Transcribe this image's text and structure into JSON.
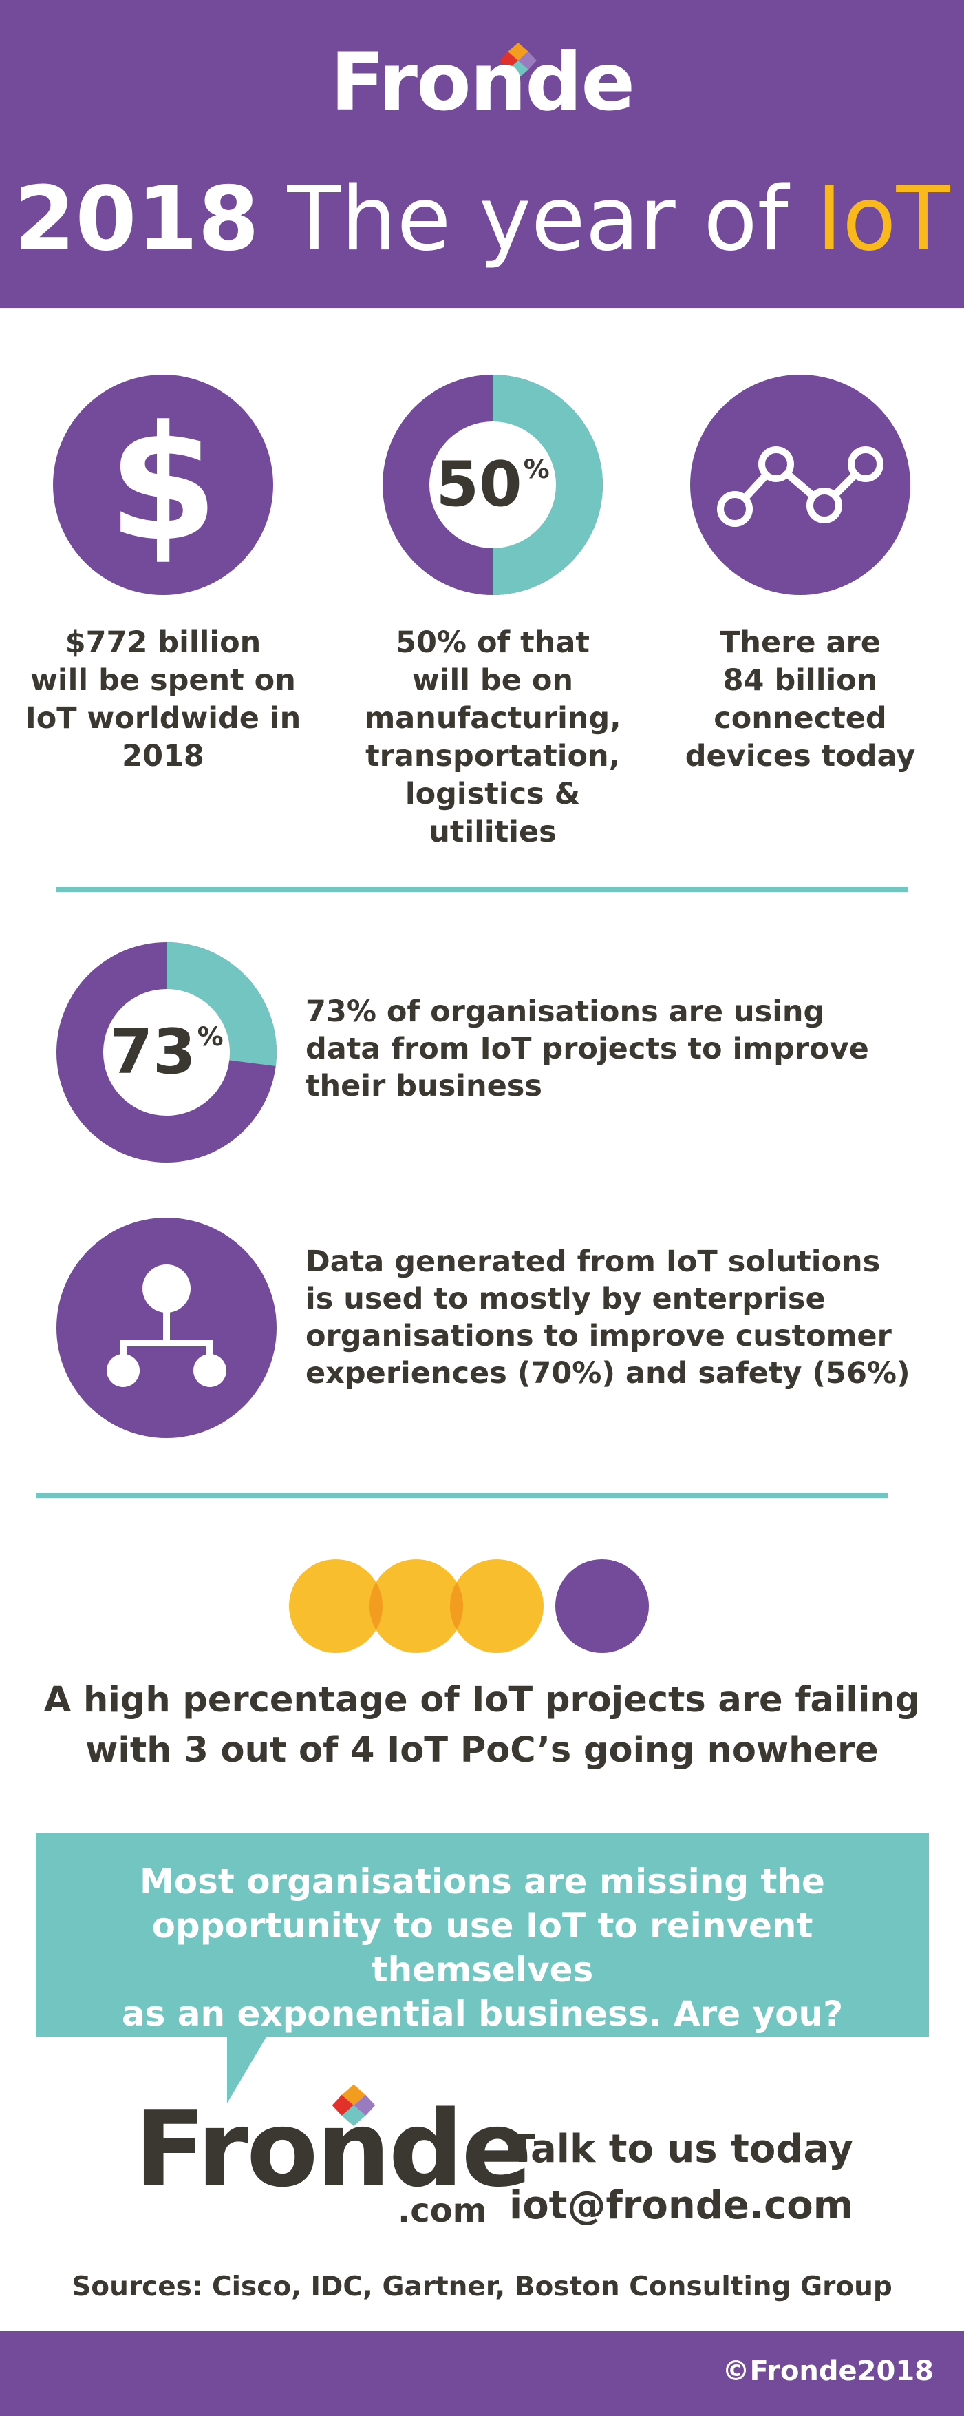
{
  "header": {
    "logo": "Fronde",
    "headline_year": "2018",
    "headline_mid": " The year of ",
    "headline_highlight": "IoT"
  },
  "stats": [
    {
      "icon": "dollar-icon",
      "symbol": "$",
      "lines": [
        "$772 billion",
        "will be spent on",
        "IoT worldwide in",
        "2018"
      ]
    },
    {
      "icon": "donut-chart",
      "value": "50",
      "unit": "%",
      "fraction": 0.5,
      "lines": [
        "50% of that",
        "will be on",
        "manufacturing,",
        "transportation,",
        "logistics & utilities"
      ]
    },
    {
      "icon": "line-graph-icon",
      "lines": [
        "There are",
        "84 billion",
        "connected",
        "devices today"
      ]
    }
  ],
  "rows": [
    {
      "icon": "donut-chart",
      "value": "73",
      "unit": "%",
      "fraction": 0.73,
      "lines": [
        "73% of organisations are using",
        "data from IoT projects to improve",
        "their business"
      ]
    },
    {
      "icon": "hierarchy-icon",
      "lines": [
        "Data generated from IoT solutions",
        "is used to mostly by enterprise",
        "organisations to improve customer",
        "experiences (70%) and safety (56%)"
      ]
    }
  ],
  "failing": {
    "circles_failing": 3,
    "circles_total": 4,
    "lines": [
      "A high percentage of IoT projects are failing",
      "with 3 out of 4 IoT PoC’s going nowhere"
    ]
  },
  "callout": {
    "line1": "Most organisations are missing the",
    "line2": "opportunity to use IoT to reinvent themselves",
    "line3_start": "as an exponential business. ",
    "line3_strong": "Are you?"
  },
  "footer": {
    "logo": "Fronde",
    "logo_suffix": ".com",
    "contact_line1": "Talk to us today",
    "contact_line2": "iot@fronde.com",
    "sources": "Sources: Cisco, IDC, Gartner, Boston Consulting Group",
    "copyright": "©Fronde2018"
  },
  "colors": {
    "purple": "#744b9a",
    "teal": "#73c5c1",
    "yellow": "#f9b91c",
    "orange": "#f29d1f",
    "text": "#3b3731"
  }
}
